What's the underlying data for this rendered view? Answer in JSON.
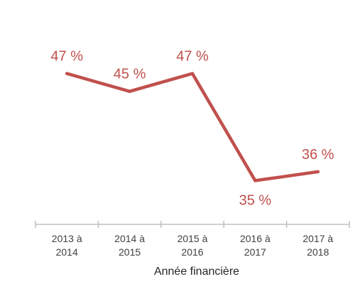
{
  "chart_data": {
    "type": "line",
    "categories": [
      [
        "2013 à",
        "2014"
      ],
      [
        "2014 à",
        "2015"
      ],
      [
        "2015 à",
        "2016"
      ],
      [
        "2016 à",
        "2017"
      ],
      [
        "2017 à",
        "2018"
      ]
    ],
    "series": [
      {
        "values": [
          47,
          45,
          47,
          35,
          36
        ],
        "data_labels": [
          "47 %",
          "45 %",
          "47 %",
          "35 %",
          "36 %"
        ],
        "data_label_position": [
          "above",
          "above",
          "above",
          "below",
          "above"
        ],
        "color": "#c0504d"
      }
    ],
    "xlabel": "Année financière",
    "ylabel": "",
    "ylim": [
      20,
      55
    ],
    "grid": false,
    "legend": "none",
    "axis_color": "#bfbfbf"
  }
}
